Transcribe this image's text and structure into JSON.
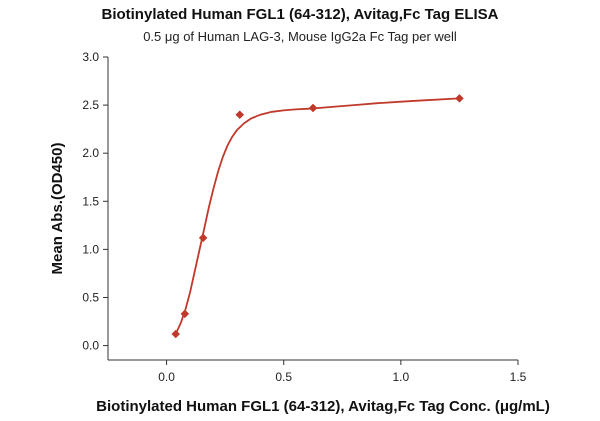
{
  "chart_data": {
    "type": "scatter",
    "title": "Biotinylated Human FGL1 (64-312), Avitag,Fc Tag ELISA",
    "subtitle": "0.5 μg of Human LAG-3, Mouse IgG2a Fc Tag per well",
    "xlabel": "Biotinylated Human FGL1 (64-312), Avitag,Fc Tag Conc. (μg/mL)",
    "ylabel": "Mean Abs.(OD450)",
    "xlim": [
      -0.25,
      1.5
    ],
    "ylim": [
      -0.15,
      3.0
    ],
    "xticks": [
      0.0,
      0.5,
      1.0,
      1.5
    ],
    "xtick_labels": [
      "0.0",
      "0.5",
      "1.0",
      "1.5"
    ],
    "yticks": [
      0.0,
      0.5,
      1.0,
      1.5,
      2.0,
      2.5,
      3.0
    ],
    "ytick_labels": [
      "0.0",
      "0.5",
      "1.0",
      "1.5",
      "2.0",
      "2.5",
      "3.0"
    ],
    "grid": false,
    "legend": "none",
    "color": "#c0392b",
    "series": [
      {
        "x": [
          0.039,
          0.078,
          0.156,
          0.3125,
          0.625,
          1.25
        ],
        "y": [
          0.12,
          0.33,
          1.12,
          2.4,
          2.47,
          2.57
        ]
      }
    ],
    "fit_curve": {
      "x": [
        0.039,
        0.06,
        0.08,
        0.1,
        0.12,
        0.14,
        0.16,
        0.18,
        0.2,
        0.22,
        0.24,
        0.26,
        0.28,
        0.3,
        0.33,
        0.36,
        0.4,
        0.45,
        0.5,
        0.55,
        0.6,
        0.625,
        0.7,
        0.8,
        0.9,
        1.0,
        1.1,
        1.25
      ],
      "y": [
        0.12,
        0.23,
        0.37,
        0.55,
        0.77,
        0.99,
        1.21,
        1.43,
        1.63,
        1.81,
        1.96,
        2.08,
        2.17,
        2.24,
        2.31,
        2.36,
        2.4,
        2.43,
        2.445,
        2.455,
        2.462,
        2.465,
        2.48,
        2.5,
        2.52,
        2.535,
        2.55,
        2.57
      ]
    }
  }
}
